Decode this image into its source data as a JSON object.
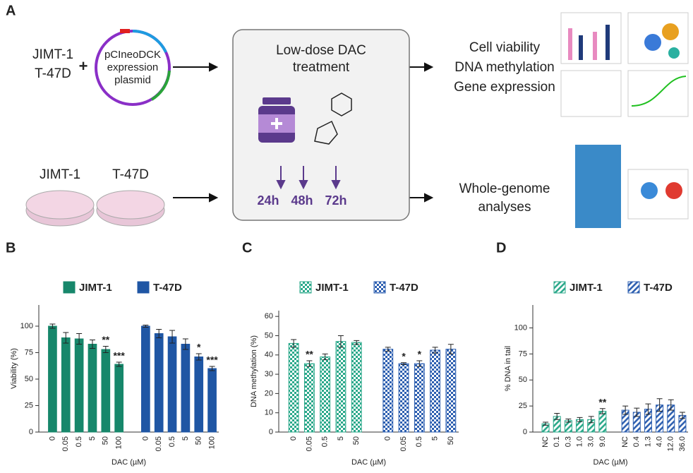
{
  "panel_a": {
    "label": "A",
    "row1_cells": [
      "JIMT-1",
      "T-47D"
    ],
    "plus": "+",
    "plasmid": [
      "pCIneoDCK",
      "expression",
      "plasmid"
    ],
    "treatment_title": [
      "Low-dose DAC",
      "treatment"
    ],
    "times": [
      "24h",
      "48h",
      "72h"
    ],
    "outputs": [
      "Cell viability",
      "DNA methylation",
      "Gene expression"
    ],
    "row2_cells": [
      "JIMT-1",
      "T-47D"
    ],
    "whole_genome": [
      "Whole-genome",
      "analyses"
    ]
  },
  "chart_data": [
    {
      "label": "B",
      "type": "bar",
      "pattern": "solid",
      "y_label": "Viability (%)",
      "x_label": "DAC (µM)",
      "ylim": [
        0,
        120
      ],
      "yticks": [
        0,
        25,
        50,
        75,
        100
      ],
      "series": [
        {
          "name": "JIMT-1",
          "color": "#17876b",
          "categories": [
            "0",
            "0.05",
            "0.5",
            "5",
            "50",
            "100"
          ],
          "values": [
            100,
            89,
            88,
            83,
            78,
            64
          ],
          "errors": [
            2,
            5,
            5,
            4,
            3,
            2
          ],
          "significance": [
            null,
            null,
            null,
            null,
            "**",
            "***"
          ]
        },
        {
          "name": "T-47D",
          "color": "#1f56a4",
          "categories": [
            "0",
            "0.05",
            "0.5",
            "5",
            "50",
            "100"
          ],
          "values": [
            100,
            93,
            90,
            83,
            71,
            60
          ],
          "errors": [
            1,
            4,
            6,
            5,
            3,
            2
          ],
          "significance": [
            null,
            null,
            null,
            null,
            "*",
            "***"
          ]
        }
      ]
    },
    {
      "label": "C",
      "type": "bar",
      "pattern": "checker",
      "y_label": "DNA methylation (%)",
      "x_label": "DAC (µM)",
      "ylim": [
        0,
        63
      ],
      "yticks": [
        0,
        10,
        20,
        30,
        40,
        50,
        60
      ],
      "series": [
        {
          "name": "JIMT-1",
          "color": "#2aa88a",
          "categories": [
            "0",
            "0.05",
            "0.5",
            "5",
            "50"
          ],
          "values": [
            46,
            35.5,
            39,
            47,
            46.5
          ],
          "errors": [
            2,
            1.5,
            1.5,
            3,
            1
          ],
          "significance": [
            null,
            "**",
            null,
            null,
            null
          ]
        },
        {
          "name": "T-47D",
          "color": "#2d5fb0",
          "categories": [
            "0",
            "0.05",
            "0.5",
            "5",
            "50"
          ],
          "values": [
            43,
            35.5,
            35.5,
            42.5,
            43
          ],
          "errors": [
            1,
            0.5,
            1.5,
            1.5,
            2.5
          ],
          "significance": [
            null,
            "*",
            "*",
            null,
            null
          ]
        }
      ]
    },
    {
      "label": "D",
      "type": "bar",
      "pattern": "hatch",
      "y_label": "% DNA in tail",
      "x_label": "DAC (µM)",
      "ylim": [
        0,
        122
      ],
      "yticks": [
        0,
        25,
        50,
        75,
        100
      ],
      "series": [
        {
          "name": "JIMT-1",
          "color": "#2aa88a",
          "categories": [
            "NC",
            "0.1",
            "0.3",
            "1.0",
            "3.0",
            "9.0"
          ],
          "values": [
            8,
            15,
            11,
            12,
            12,
            20
          ],
          "errors": [
            1.5,
            3,
            1.5,
            2,
            3,
            2.5
          ],
          "significance": [
            null,
            null,
            null,
            null,
            null,
            "**"
          ]
        },
        {
          "name": "T-47D",
          "color": "#2d5fb0",
          "categories": [
            "NC",
            "0.4",
            "1.3",
            "4.0",
            "12.0",
            "36.0"
          ],
          "values": [
            21,
            19,
            22,
            26,
            26,
            16
          ],
          "errors": [
            4,
            4,
            5,
            6,
            5,
            3
          ],
          "significance": [
            null,
            null,
            null,
            null,
            null,
            null
          ]
        }
      ]
    }
  ]
}
